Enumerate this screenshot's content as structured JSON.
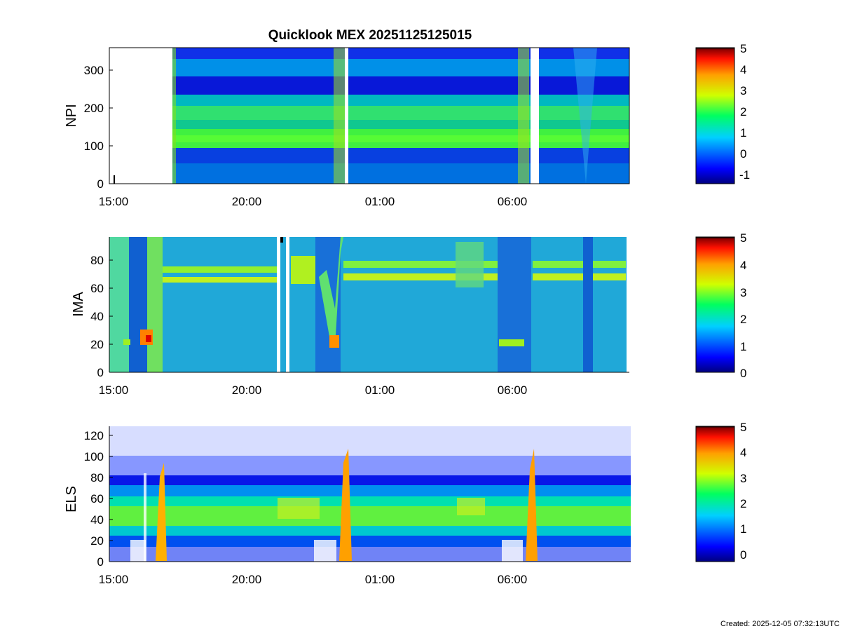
{
  "footer": "Created: 2025-12-05 07:32:13UTC",
  "colors": {
    "background": "#ffffff",
    "axis": "#000000",
    "gap": "#ffffff"
  },
  "chart_data": [
    {
      "type": "heatmap",
      "title": "Quicklook MEX 20251125125015",
      "ylabel": "NPI",
      "ylim": [
        0,
        360
      ],
      "yticks": [
        "0",
        "100",
        "200",
        "300"
      ],
      "xticks": [
        "15:00",
        "20:00",
        "01:00",
        "06:00"
      ],
      "colorbar": {
        "range": [
          -1.3,
          5
        ],
        "ticks": [
          "-1",
          "0",
          "1",
          "2",
          "3",
          "4",
          "5"
        ]
      }
    },
    {
      "type": "heatmap",
      "title": "",
      "ylabel": "IMA",
      "ylim": [
        0,
        97
      ],
      "yticks": [
        "0",
        "20",
        "40",
        "60",
        "80"
      ],
      "xticks": [
        "15:00",
        "20:00",
        "01:00",
        "06:00"
      ],
      "colorbar": {
        "range": [
          0,
          5
        ],
        "ticks": [
          "0",
          "1",
          "2",
          "3",
          "4",
          "5"
        ]
      }
    },
    {
      "type": "heatmap",
      "title": "",
      "ylabel": "ELS",
      "ylim": [
        0,
        128
      ],
      "yticks": [
        "0",
        "20",
        "40",
        "60",
        "80",
        "100",
        "120"
      ],
      "xticks": [
        "15:00",
        "20:00",
        "01:00",
        "06:00"
      ],
      "colorbar": {
        "range": [
          -0.3,
          5
        ],
        "ticks": [
          "0",
          "1",
          "2",
          "3",
          "4",
          "5"
        ]
      }
    }
  ]
}
